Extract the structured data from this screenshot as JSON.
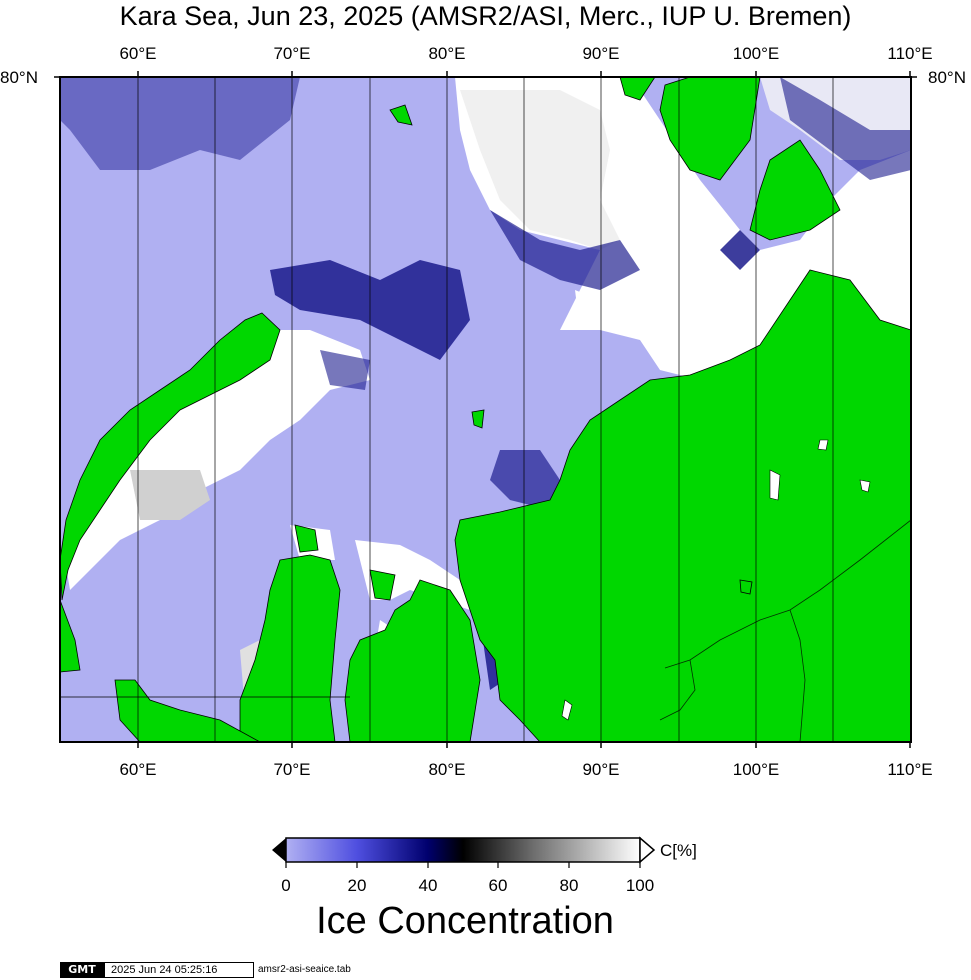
{
  "title": "Kara Sea, Jun 23, 2025 (AMSR2/ASI, Merc., IUP U. Bremen)",
  "lon_ticks": [
    "60°E",
    "70°E",
    "80°E",
    "90°E",
    "100°E",
    "110°E"
  ],
  "lat_tick": "80°N",
  "colorbar": {
    "unit": "C[%]",
    "tick_labels": [
      "0",
      "20",
      "40",
      "60",
      "80",
      "100"
    ],
    "title": "Ice Concentration"
  },
  "footer": {
    "logo": "GMT",
    "timestamp": "2025 Jun 24 05:25:16",
    "file": "amsr2-asi-seaice.tab"
  },
  "colors": {
    "water": "#b0b0f2",
    "land": "#00d700",
    "ice": "#ffffff",
    "low_ice": "#1a1a8c"
  }
}
